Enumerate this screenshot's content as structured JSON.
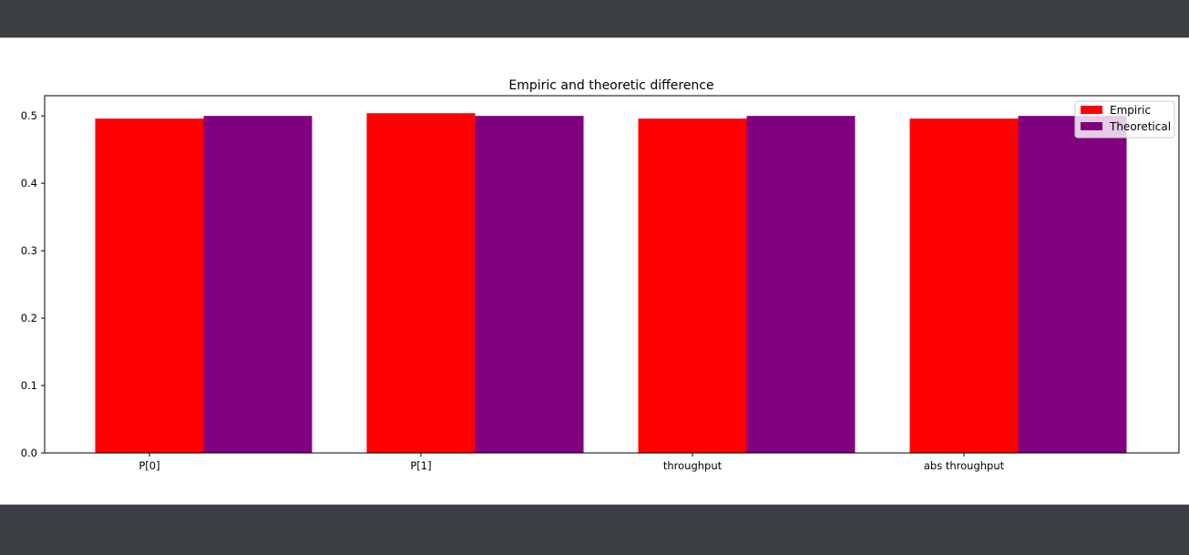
{
  "chart_data": {
    "type": "bar",
    "title": "Empiric and theoretic difference",
    "xlabel": "",
    "ylabel": "",
    "categories": [
      "P[0]",
      "P[1]",
      "throughput",
      "abs throughput"
    ],
    "series": [
      {
        "name": "Empiric",
        "color": "#ff0000",
        "values": [
          0.496,
          0.504,
          0.496,
          0.496
        ]
      },
      {
        "name": "Theoretical",
        "color": "#800080",
        "values": [
          0.5,
          0.5,
          0.5,
          0.5
        ]
      }
    ],
    "ylim": [
      0,
      0.53
    ],
    "yticks": [
      "0.0",
      "0.1",
      "0.2",
      "0.3",
      "0.4",
      "0.5"
    ],
    "grid": false,
    "legend_position": "top-right"
  }
}
